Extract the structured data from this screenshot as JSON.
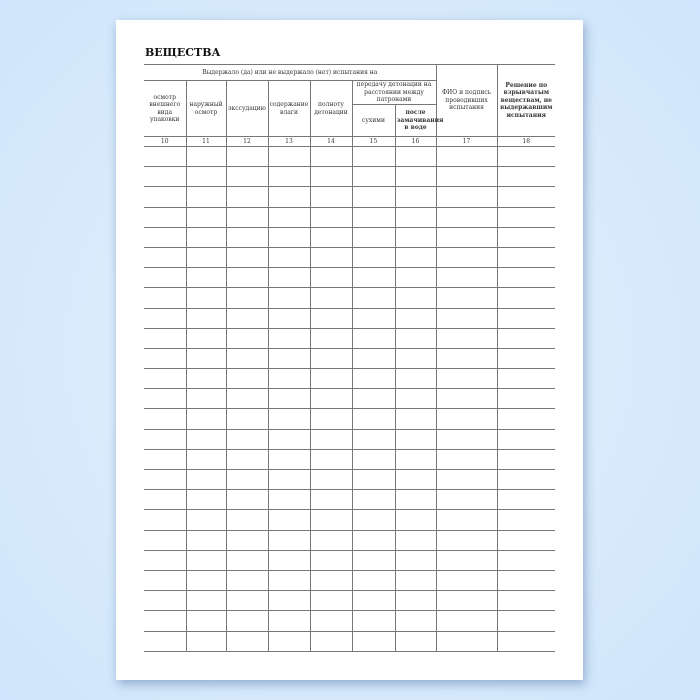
{
  "title": "ВЕЩЕСТВА",
  "group_header": "Выдержало (да) или не выдержало (нет) испытания на",
  "columns": [
    {
      "label": "осмотр внешнего вида упаковки",
      "num": "10"
    },
    {
      "label": "наружный осмотр",
      "num": "11"
    },
    {
      "label": "экссудацию",
      "num": "12"
    },
    {
      "label": "содержание влаги",
      "num": "13"
    },
    {
      "label": "полноту детонации",
      "num": "14"
    },
    {
      "label": "сухими",
      "num": "15"
    },
    {
      "label": "после замачивания в воде",
      "num": "16"
    },
    {
      "label": "ФИО и подпись проводивших испытания",
      "num": "17"
    },
    {
      "label": "Решение по взрывчатым веществам, не выдержавшим испытания",
      "num": "18"
    }
  ],
  "detonation_header": "передачу детонации на расстоянии между патронами",
  "blank_rows": 25
}
